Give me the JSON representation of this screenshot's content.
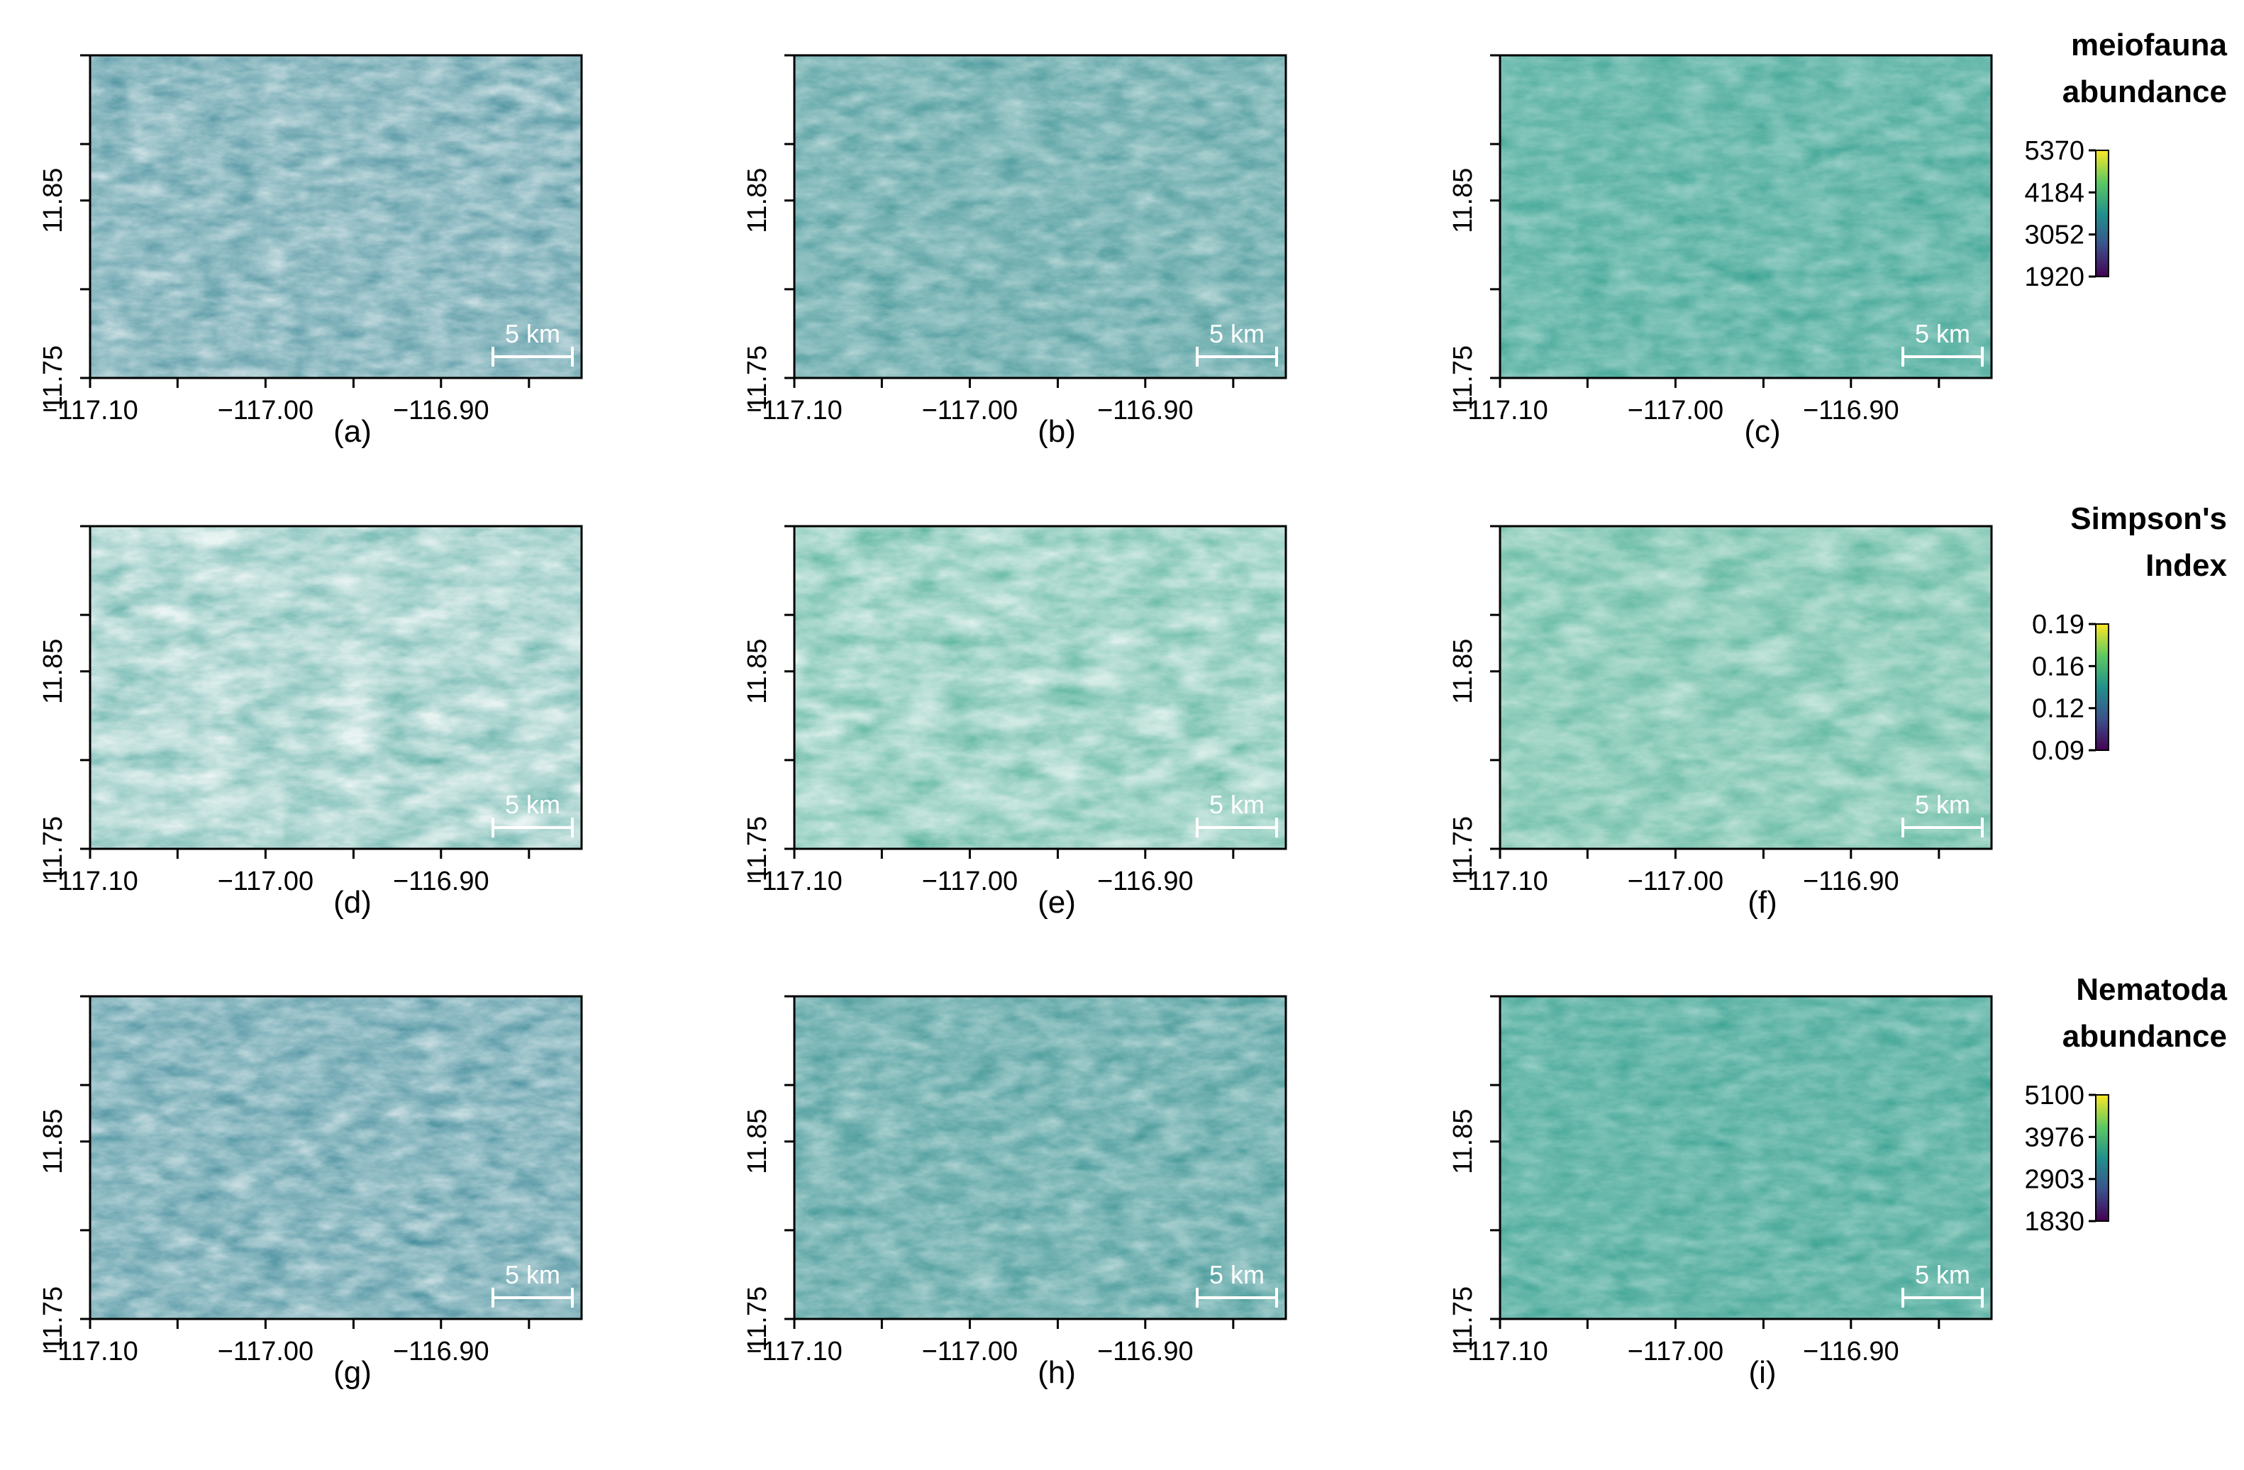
{
  "axes": {
    "x_ticks": [
      "−117.10",
      "−117.00",
      "−116.90"
    ],
    "y_ticks": [
      "11.75",
      "11.85"
    ]
  },
  "scalebar_label": "5 km",
  "colormap": [
    "#440154",
    "#3b528b",
    "#21918c",
    "#5ec962",
    "#fde725"
  ],
  "panels": [
    {
      "label": "(a)",
      "variable": "meiofauna",
      "model": "a"
    },
    {
      "label": "(b)",
      "variable": "meiofauna",
      "model": "b"
    },
    {
      "label": "(c)",
      "variable": "meiofauna",
      "model": "c"
    },
    {
      "label": "(d)",
      "variable": "simpson",
      "model": "a"
    },
    {
      "label": "(e)",
      "variable": "simpson",
      "model": "b"
    },
    {
      "label": "(f)",
      "variable": "simpson",
      "model": "c"
    },
    {
      "label": "(g)",
      "variable": "nematoda",
      "model": "a"
    },
    {
      "label": "(h)",
      "variable": "nematoda",
      "model": "b"
    },
    {
      "label": "(i)",
      "variable": "nematoda",
      "model": "c"
    }
  ],
  "legends": [
    {
      "title_lines": [
        "meiofauna",
        "abundance"
      ],
      "ticks": [
        "5370",
        "4184",
        "3052",
        "1920"
      ]
    },
    {
      "title_lines": [
        "Simpson's",
        "Index"
      ],
      "ticks": [
        "0.19",
        "0.16",
        "0.12",
        "0.09"
      ]
    },
    {
      "title_lines": [
        "Nematoda",
        "abundance"
      ],
      "ticks": [
        "5100",
        "3976",
        "2903",
        "1830"
      ]
    }
  ]
}
